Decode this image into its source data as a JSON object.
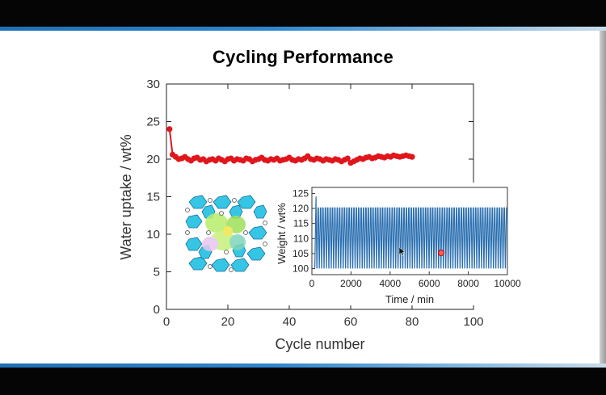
{
  "slide": {
    "title": "Cycling Performance"
  },
  "chart_data": [
    {
      "type": "scatter",
      "title": "Cycling Performance",
      "xlabel": "Cycle number",
      "ylabel": "Water uptake / wt%",
      "xlim": [
        0,
        100
      ],
      "ylim": [
        0,
        30
      ],
      "xticks": [
        0,
        20,
        40,
        60,
        80,
        100
      ],
      "yticks": [
        0,
        5,
        10,
        15,
        20,
        25,
        30
      ],
      "series": [
        {
          "name": "Water uptake",
          "color": "#e0161c",
          "x": [
            1,
            2,
            3,
            4,
            5,
            6,
            7,
            8,
            9,
            10,
            11,
            12,
            13,
            14,
            15,
            16,
            17,
            18,
            19,
            20,
            21,
            22,
            23,
            24,
            25,
            26,
            27,
            28,
            29,
            30,
            31,
            32,
            33,
            34,
            35,
            36,
            37,
            38,
            39,
            40,
            41,
            42,
            43,
            44,
            45,
            46,
            47,
            48,
            49,
            50,
            51,
            52,
            53,
            54,
            55,
            56,
            57,
            58,
            59,
            60,
            61,
            62,
            63,
            64,
            65,
            66,
            67,
            68,
            69,
            70,
            71,
            72,
            73,
            74,
            75,
            76,
            77,
            78,
            79,
            80
          ],
          "y": [
            24.0,
            20.6,
            20.3,
            20.0,
            20.1,
            20.3,
            20.0,
            19.8,
            20.1,
            20.2,
            19.9,
            20.0,
            19.7,
            19.9,
            20.0,
            19.8,
            20.1,
            19.9,
            19.7,
            20.0,
            20.1,
            19.8,
            20.0,
            19.9,
            19.8,
            20.1,
            20.0,
            19.7,
            19.9,
            20.0,
            20.2,
            19.9,
            19.8,
            20.0,
            19.9,
            20.1,
            19.8,
            19.9,
            20.0,
            20.2,
            19.9,
            19.8,
            20.0,
            19.9,
            20.1,
            20.4,
            20.0,
            19.9,
            20.1,
            20.0,
            19.8,
            20.0,
            19.9,
            19.8,
            20.0,
            19.9,
            19.7,
            19.9,
            20.1,
            19.5,
            19.7,
            19.9,
            20.1,
            20.0,
            20.2,
            20.3,
            20.1,
            20.2,
            20.4,
            20.3,
            20.2,
            20.4,
            20.3,
            20.5,
            20.4,
            20.3,
            20.4,
            20.5,
            20.4,
            20.3
          ]
        }
      ]
    },
    {
      "type": "line",
      "title": "",
      "xlabel": "Time / min",
      "ylabel": "Weight / wt%",
      "xlim": [
        0,
        10000
      ],
      "ylim": [
        98,
        127
      ],
      "xticks": [
        0,
        2000,
        4000,
        6000,
        8000,
        10000
      ],
      "yticks": [
        100,
        105,
        110,
        115,
        120,
        125
      ],
      "series": [
        {
          "name": "Weight",
          "color": "#2a6fb0",
          "start_time": 150,
          "initial_peak": 124,
          "upper_plateau": 120.2,
          "baseline": 100.2,
          "cycles": 80,
          "period_min": 122
        }
      ]
    }
  ],
  "insets": {
    "structure_image": "framework-structure-illustration"
  }
}
